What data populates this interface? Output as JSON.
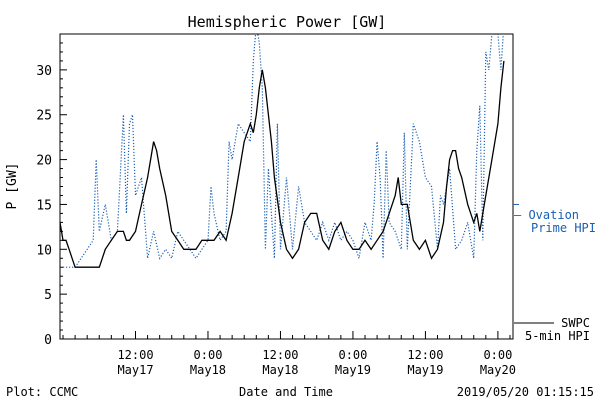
{
  "chart_data": {
    "type": "line",
    "title": "Hemispheric Power [GW]",
    "ylabel": "P [GW]",
    "xlabel": "Date and Time",
    "ylim": [
      0,
      34
    ],
    "yticks": [
      0,
      5,
      10,
      15,
      20,
      25,
      30
    ],
    "xticks": [
      {
        "t": 12,
        "line1": "12:00",
        "line2": "May17"
      },
      {
        "t": 24,
        "line1": "0:00",
        "line2": "May18"
      },
      {
        "t": 36,
        "line1": "12:00",
        "line2": "May18"
      },
      {
        "t": 48,
        "line1": "0:00",
        "line2": "May19"
      },
      {
        "t": 60,
        "line1": "12:00",
        "line2": "May19"
      },
      {
        "t": 72,
        "line1": "0:00",
        "line2": "May20"
      }
    ],
    "xlim_hours": [
      -0.5,
      74.5
    ],
    "legend": [
      {
        "label_line1": "— Ovation",
        "label_line2": "Prime HPI",
        "color": "#1a5fb4",
        "style": "dotted"
      },
      {
        "label_line1": "SWPC",
        "label_line2": "5-min HPI",
        "color": "#000000",
        "style": "solid"
      }
    ],
    "series": [
      {
        "style": "solid",
        "color": "#000000",
        "points": [
          [
            -0.5,
            13
          ],
          [
            0,
            11
          ],
          [
            0.5,
            11
          ],
          [
            1,
            10
          ],
          [
            1.5,
            9
          ],
          [
            2,
            8
          ],
          [
            3,
            8
          ],
          [
            4,
            8
          ],
          [
            5,
            8
          ],
          [
            6,
            8
          ],
          [
            6.5,
            9
          ],
          [
            7,
            10
          ],
          [
            8,
            11
          ],
          [
            9,
            12
          ],
          [
            10,
            12
          ],
          [
            10.5,
            11
          ],
          [
            11,
            11
          ],
          [
            12,
            12
          ],
          [
            13,
            15
          ],
          [
            14,
            18
          ],
          [
            14.5,
            20
          ],
          [
            15,
            22
          ],
          [
            15.5,
            21
          ],
          [
            16,
            19
          ],
          [
            17,
            16
          ],
          [
            18,
            12
          ],
          [
            19,
            11
          ],
          [
            20,
            10
          ],
          [
            21,
            10
          ],
          [
            22,
            10
          ],
          [
            23,
            11
          ],
          [
            24,
            11
          ],
          [
            25,
            11
          ],
          [
            26,
            12
          ],
          [
            27,
            11
          ],
          [
            28,
            14
          ],
          [
            29,
            18
          ],
          [
            30,
            22
          ],
          [
            31,
            24
          ],
          [
            31.5,
            23
          ],
          [
            32,
            25
          ],
          [
            32.5,
            28
          ],
          [
            33,
            30
          ],
          [
            33.5,
            28
          ],
          [
            34,
            25
          ],
          [
            34.5,
            22
          ],
          [
            35,
            18
          ],
          [
            36,
            13
          ],
          [
            37,
            10
          ],
          [
            38,
            9
          ],
          [
            39,
            10
          ],
          [
            40,
            13
          ],
          [
            41,
            14
          ],
          [
            42,
            14
          ],
          [
            43,
            11
          ],
          [
            44,
            10
          ],
          [
            45,
            12
          ],
          [
            46,
            13
          ],
          [
            47,
            11
          ],
          [
            48,
            10
          ],
          [
            49,
            10
          ],
          [
            50,
            11
          ],
          [
            51,
            10
          ],
          [
            52,
            11
          ],
          [
            53,
            12
          ],
          [
            54,
            14
          ],
          [
            55,
            16
          ],
          [
            55.5,
            18
          ],
          [
            56,
            15
          ],
          [
            57,
            15
          ],
          [
            58,
            11
          ],
          [
            59,
            10
          ],
          [
            60,
            11
          ],
          [
            61,
            9
          ],
          [
            62,
            10
          ],
          [
            63,
            13
          ],
          [
            63.5,
            17
          ],
          [
            64,
            20
          ],
          [
            64.5,
            21
          ],
          [
            65,
            21
          ],
          [
            65.5,
            19
          ],
          [
            66,
            18
          ],
          [
            67,
            15
          ],
          [
            68,
            13
          ],
          [
            68.5,
            14
          ],
          [
            69,
            12
          ],
          [
            70,
            16
          ],
          [
            71,
            20
          ],
          [
            72,
            24
          ],
          [
            72.5,
            28
          ],
          [
            73,
            31
          ]
        ]
      },
      {
        "style": "dotted",
        "color": "#1a5fb4",
        "points": [
          [
            -0.5,
            8
          ],
          [
            0,
            8
          ],
          [
            1,
            8
          ],
          [
            2,
            8
          ],
          [
            3,
            9
          ],
          [
            4,
            10
          ],
          [
            5,
            11
          ],
          [
            5.5,
            20
          ],
          [
            6,
            12
          ],
          [
            7,
            15
          ],
          [
            8,
            11
          ],
          [
            9,
            12
          ],
          [
            10,
            25
          ],
          [
            10.5,
            14
          ],
          [
            11,
            24
          ],
          [
            11.5,
            25
          ],
          [
            12,
            16
          ],
          [
            13,
            18
          ],
          [
            14,
            9
          ],
          [
            15,
            12
          ],
          [
            16,
            9
          ],
          [
            17,
            10
          ],
          [
            18,
            9
          ],
          [
            19,
            12
          ],
          [
            20,
            11
          ],
          [
            21,
            10
          ],
          [
            22,
            9
          ],
          [
            23,
            10
          ],
          [
            24,
            11
          ],
          [
            24.5,
            17
          ],
          [
            25,
            14
          ],
          [
            26,
            11
          ],
          [
            27,
            12
          ],
          [
            27.5,
            22
          ],
          [
            28,
            20
          ],
          [
            29,
            24
          ],
          [
            30,
            23
          ],
          [
            31,
            22
          ],
          [
            31.5,
            31
          ],
          [
            32,
            35
          ],
          [
            32.5,
            33
          ],
          [
            33,
            28
          ],
          [
            33.5,
            10
          ],
          [
            34,
            19
          ],
          [
            35,
            9
          ],
          [
            35.5,
            24
          ],
          [
            36,
            10
          ],
          [
            37,
            18
          ],
          [
            38,
            10
          ],
          [
            39,
            17
          ],
          [
            40,
            13
          ],
          [
            41,
            12
          ],
          [
            42,
            11
          ],
          [
            43,
            13
          ],
          [
            44,
            11
          ],
          [
            45,
            13
          ],
          [
            46,
            11
          ],
          [
            47,
            12
          ],
          [
            48,
            11
          ],
          [
            49,
            9
          ],
          [
            50,
            13
          ],
          [
            51,
            11
          ],
          [
            51.5,
            15
          ],
          [
            52,
            22
          ],
          [
            52.5,
            18
          ],
          [
            53,
            9
          ],
          [
            53.5,
            21
          ],
          [
            54,
            13
          ],
          [
            55,
            12
          ],
          [
            56,
            10
          ],
          [
            56.5,
            23
          ],
          [
            57,
            10
          ],
          [
            58,
            24
          ],
          [
            59,
            22
          ],
          [
            60,
            18
          ],
          [
            61,
            17
          ],
          [
            62,
            10
          ],
          [
            62.5,
            16
          ],
          [
            63,
            15
          ],
          [
            64,
            19
          ],
          [
            65,
            10
          ],
          [
            66,
            11
          ],
          [
            67,
            13
          ],
          [
            68,
            9
          ],
          [
            68.5,
            21
          ],
          [
            69,
            26
          ],
          [
            69.5,
            11
          ],
          [
            70,
            32
          ],
          [
            70.5,
            30
          ],
          [
            71,
            34
          ],
          [
            72,
            34
          ],
          [
            72.5,
            30
          ],
          [
            73,
            35
          ]
        ]
      }
    ]
  },
  "footer": {
    "plot_credit": "Plot: CCMC",
    "timestamp": "2019/05/20 01:15:15"
  }
}
